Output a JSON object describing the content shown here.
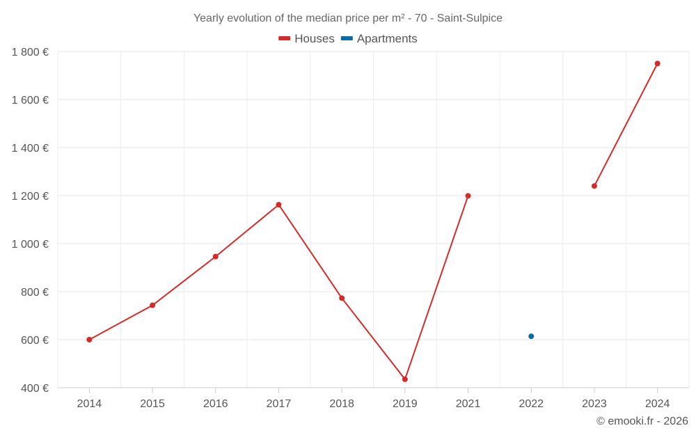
{
  "chart_data": {
    "type": "line",
    "title": "Yearly evolution of the median price per m² - 70 - Saint-Sulpice",
    "categories": [
      "2014",
      "2015",
      "2016",
      "2017",
      "2018",
      "2019",
      "2021",
      "2022",
      "2023",
      "2024"
    ],
    "ylim": [
      400,
      1800
    ],
    "yticks": [
      400,
      600,
      800,
      1000,
      1200,
      1400,
      1600,
      1800
    ],
    "ytick_labels": [
      "400 €",
      "600 €",
      "800 €",
      "1 000 €",
      "1 200 €",
      "1 400 €",
      "1 600 €",
      "1 800 €"
    ],
    "grid": true,
    "legend_position": "top-center",
    "series": [
      {
        "name": "Houses",
        "color": "#d32a2a",
        "values": [
          600,
          743,
          946,
          1162,
          773,
          435,
          1199,
          null,
          1240,
          1750
        ]
      },
      {
        "name": "Apartments",
        "color": "#0e6aa0",
        "values": [
          null,
          null,
          null,
          null,
          null,
          null,
          null,
          614,
          null,
          null
        ]
      }
    ]
  },
  "credit": "© emooki.fr - 2026"
}
